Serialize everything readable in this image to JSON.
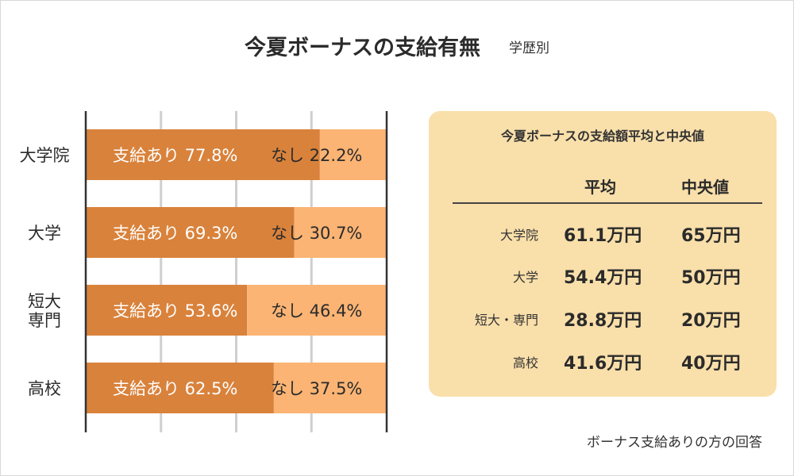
{
  "title": "今夏ボーナスの支給有無",
  "subtitle": "学歴別",
  "colors": {
    "yes": "#d9823b",
    "no": "#fbb474",
    "panel": "#f9dfaa",
    "grid": "#cfcfcf",
    "axis": "#333333"
  },
  "chart_data": {
    "type": "bar",
    "orientation": "horizontal",
    "stacked": true,
    "categories": [
      "大学院",
      "大学",
      "短大\n専門",
      "高校"
    ],
    "series": [
      {
        "name": "支給あり",
        "values": [
          77.8,
          69.3,
          53.6,
          62.5
        ]
      },
      {
        "name": "なし",
        "values": [
          22.2,
          30.7,
          46.4,
          37.5
        ]
      }
    ],
    "bar_labels": [
      [
        "支給あり 77.8%",
        "なし 22.2%"
      ],
      [
        "支給あり 69.3%",
        "なし 30.7%"
      ],
      [
        "支給あり 53.6%",
        "なし 46.4%"
      ],
      [
        "支給あり 62.5%",
        "なし 37.5%"
      ]
    ],
    "xlim": [
      0,
      100
    ],
    "grid": true
  },
  "panel": {
    "title": "今夏ボーナスの支給額平均と中央値",
    "col_avg": "平均",
    "col_median": "中央値",
    "rows": [
      {
        "label": "大学院",
        "avg": "61.1万円",
        "median": "65万円"
      },
      {
        "label": "大学",
        "avg": "54.4万円",
        "median": "50万円"
      },
      {
        "label": "短大・専門",
        "avg": "28.8万円",
        "median": "20万円"
      },
      {
        "label": "高校",
        "avg": "41.6万円",
        "median": "40万円"
      }
    ]
  },
  "note": "ボーナス支給ありの方の回答"
}
